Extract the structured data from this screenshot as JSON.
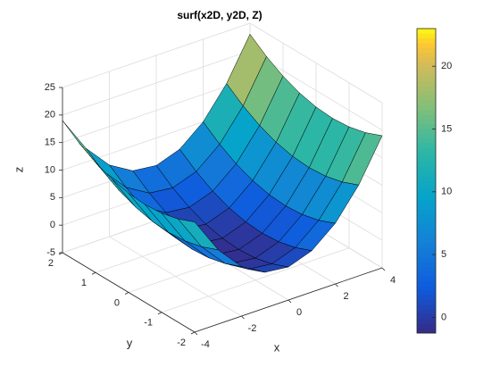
{
  "chart_data": {
    "type": "surface",
    "title": "surf(x2D, y2D, Z)",
    "xlabel": "x",
    "ylabel": "y",
    "zlabel": "z",
    "x": [
      -4,
      -3,
      -2,
      -1,
      0,
      1,
      2,
      3,
      4
    ],
    "y": [
      -2,
      -1.5,
      -1,
      -0.5,
      0,
      0.5,
      1,
      1.5,
      2
    ],
    "z": [
      [
        15,
        8.5,
        4,
        1.5,
        1,
        2.5,
        6,
        11.5,
        19
      ],
      [
        13.75,
        7.25,
        2.75,
        0.25,
        -0.25,
        1.25,
        4.75,
        10.25,
        17.75
      ],
      [
        13,
        6.5,
        2,
        -0.5,
        -1,
        0.5,
        4,
        9.5,
        17
      ],
      [
        12.75,
        6.25,
        1.75,
        -0.75,
        -1.25,
        0.25,
        3.75,
        9.25,
        16.75
      ],
      [
        13,
        6.5,
        2,
        -0.5,
        -1,
        0.5,
        4,
        9.5,
        17
      ],
      [
        13.75,
        7.25,
        2.75,
        0.25,
        -0.25,
        1.25,
        4.75,
        10.25,
        17.75
      ],
      [
        15,
        8.5,
        4,
        1.5,
        1,
        2.5,
        6,
        11.5,
        19
      ],
      [
        16.75,
        10.25,
        5.75,
        3.25,
        2.75,
        4.25,
        7.75,
        13.25,
        20.75
      ],
      [
        19,
        12.5,
        8,
        5.5,
        5,
        6.5,
        10,
        15.5,
        23
      ]
    ],
    "xlim": [
      -4,
      4
    ],
    "xticks": [
      -4,
      -2,
      0,
      2,
      4
    ],
    "ylim": [
      -2,
      2
    ],
    "yticks": [
      -2,
      -1,
      0,
      1,
      2
    ],
    "zlim": [
      -5,
      25
    ],
    "zticks": [
      -5,
      0,
      5,
      10,
      15,
      20,
      25
    ],
    "grid": true,
    "colormap": "parula",
    "colorbar": {
      "lim": [
        -1.25,
        23
      ],
      "ticks": [
        0,
        5,
        10,
        15,
        20
      ]
    }
  }
}
